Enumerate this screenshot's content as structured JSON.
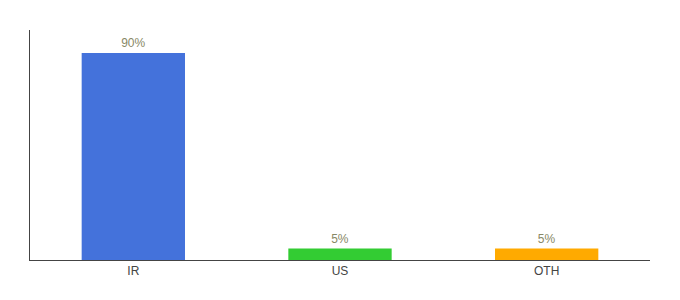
{
  "chart_data": {
    "type": "bar",
    "categories": [
      "IR",
      "US",
      "OTH"
    ],
    "values": [
      90,
      5,
      5
    ],
    "value_labels": [
      "90%",
      "5%",
      "5%"
    ],
    "data_labels": true,
    "colors": [
      "#4472db",
      "#33cc33",
      "#ffaa00"
    ],
    "ylim": [
      0,
      100
    ],
    "tick_labels": "x",
    "grid": false
  }
}
